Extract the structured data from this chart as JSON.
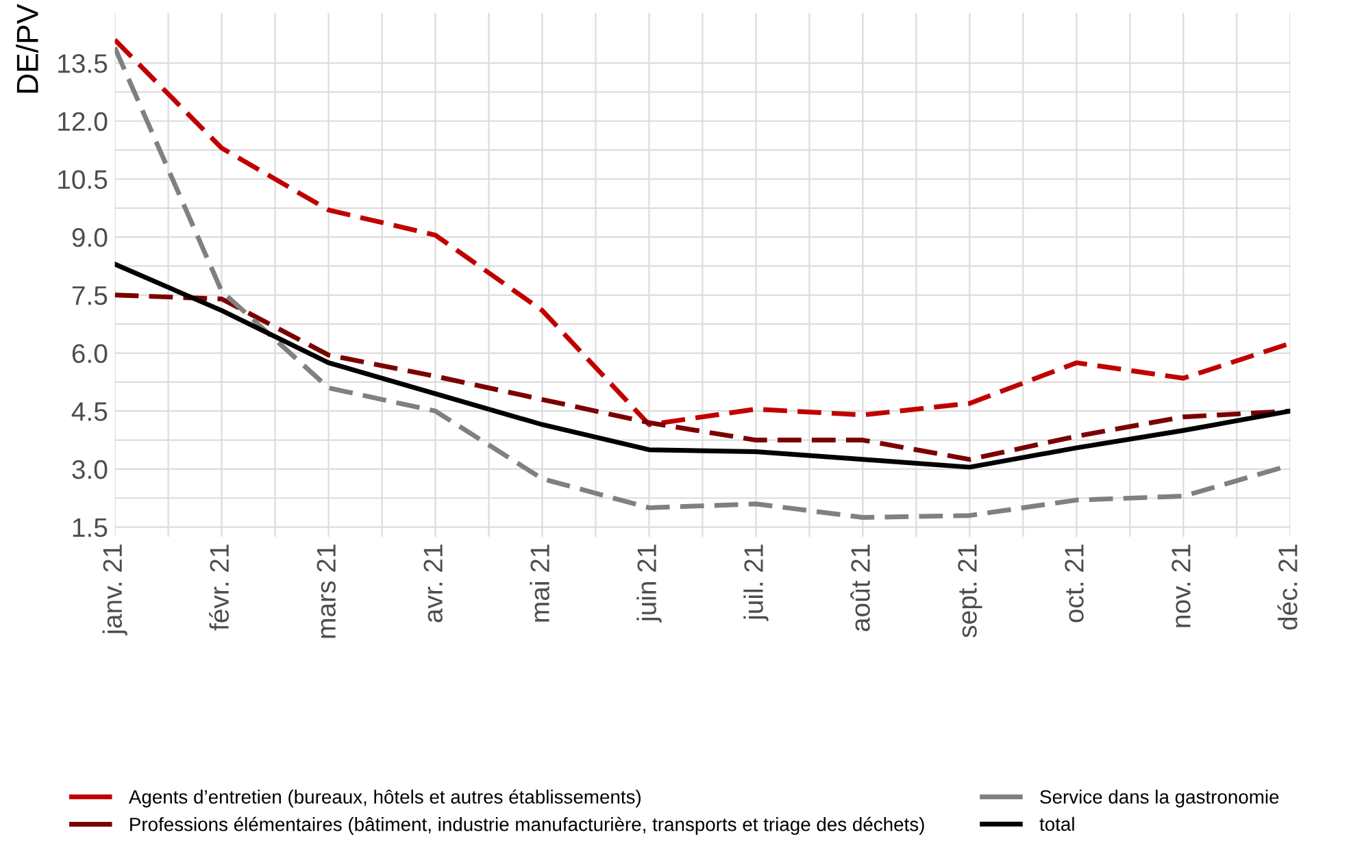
{
  "chart_data": {
    "type": "line",
    "ylabel": "DE/PV",
    "categories": [
      "janv. 21",
      "févr. 21",
      "mars 21",
      "avr. 21",
      "mai 21",
      "juin 21",
      "juil. 21",
      "août 21",
      "sept. 21",
      "oct. 21",
      "nov. 21",
      "déc. 21"
    ],
    "series": [
      {
        "name": "Agents d’entretien (bureaux, hôtels et autres établissements)",
        "color": "#c00000",
        "line_style": "dashed",
        "values": [
          14.1,
          11.3,
          9.7,
          9.05,
          7.1,
          4.15,
          4.55,
          4.4,
          4.7,
          5.75,
          5.35,
          6.25
        ]
      },
      {
        "name": "Professions élémentaires (bâtiment, industrie manufacturière, transports et triage des déchets)",
        "color": "#7b0000",
        "line_style": "dashed",
        "values": [
          7.5,
          7.4,
          5.95,
          5.4,
          4.8,
          4.2,
          3.75,
          3.75,
          3.25,
          3.85,
          4.35,
          4.5
        ]
      },
      {
        "name": "Service dans la gastronomie",
        "color": "#808080",
        "line_style": "dashed",
        "values": [
          13.9,
          7.6,
          5.1,
          4.5,
          2.75,
          2.0,
          2.1,
          1.75,
          1.8,
          2.2,
          2.3,
          3.1
        ]
      },
      {
        "name": "total",
        "color": "#000000",
        "line_style": "solid",
        "values": [
          8.3,
          7.1,
          5.75,
          4.95,
          4.15,
          3.5,
          3.45,
          3.25,
          3.05,
          3.55,
          4.0,
          4.5
        ]
      }
    ],
    "ylim": [
      1.25,
      14.8
    ],
    "yticks": [
      1.5,
      {
        "value": 3,
        "label": "3.0"
      },
      4.5,
      {
        "value": 6,
        "label": "6.0"
      },
      7.5,
      {
        "value": 9,
        "label": "9.0"
      },
      10.5,
      {
        "value": 12,
        "label": "12.0"
      },
      13.5
    ],
    "grid": true,
    "legend": "bottom",
    "marker": "none"
  }
}
